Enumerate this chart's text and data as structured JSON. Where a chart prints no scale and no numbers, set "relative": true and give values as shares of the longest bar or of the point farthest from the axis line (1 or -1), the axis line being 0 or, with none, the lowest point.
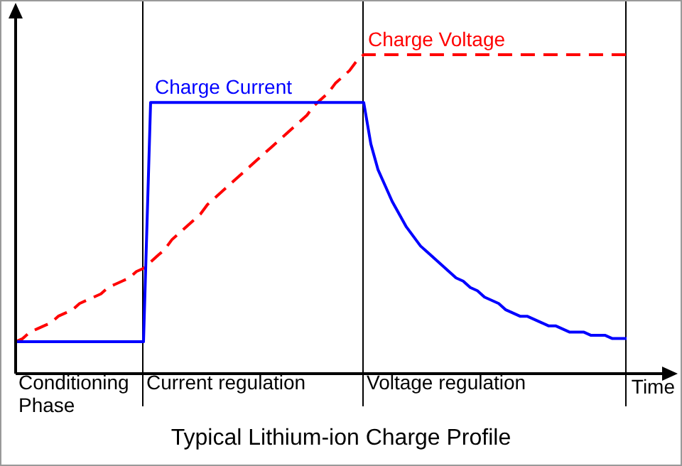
{
  "chart_data": {
    "type": "line",
    "title": "Typical Lithium-ion Charge Profile",
    "xlabel": "Time",
    "relative": true,
    "legend": false,
    "marker": "none",
    "annotations": [
      "Conditioning Phase",
      "Current regulation",
      "Voltage regulation"
    ],
    "categories": [
      null,
      null,
      null,
      null,
      null,
      null,
      null,
      null,
      null,
      null,
      null,
      null,
      null,
      null,
      null,
      null,
      null,
      null,
      null,
      null,
      null,
      null,
      null,
      null,
      null,
      null,
      null,
      null,
      null,
      null,
      null,
      null,
      null,
      null,
      null,
      null,
      null,
      null,
      null,
      null,
      null,
      null,
      null,
      null,
      null,
      null,
      null,
      null,
      null,
      null,
      null,
      null,
      null,
      null,
      null,
      null,
      null,
      null,
      null,
      null,
      null,
      null,
      null,
      null,
      null,
      null,
      null,
      null,
      null,
      null,
      null,
      null,
      null,
      null,
      null,
      null,
      null,
      null,
      null,
      null,
      null,
      null,
      null,
      null,
      null,
      null,
      null,
      null,
      null,
      null,
      null,
      null,
      null
    ],
    "series": [
      {
        "name": "Charge Current",
        "color": "#0000ff",
        "line_style": "solid",
        "values": [
          0.1,
          0.1,
          0.1,
          0.1,
          0.1,
          0.1,
          0.1,
          0.1,
          0.1,
          0.1,
          0.1,
          0.1,
          0.1,
          0.1,
          0.1,
          0.1,
          0.1,
          0.1,
          0.1,
          0.85,
          0.85,
          0.85,
          0.85,
          0.85,
          0.85,
          0.85,
          0.85,
          0.85,
          0.85,
          0.85,
          0.85,
          0.85,
          0.85,
          0.85,
          0.85,
          0.85,
          0.85,
          0.85,
          0.85,
          0.85,
          0.85,
          0.85,
          0.85,
          0.85,
          0.85,
          0.85,
          0.85,
          0.85,
          0.85,
          0.85,
          0.72,
          0.64,
          0.59,
          0.54,
          0.5,
          0.46,
          0.43,
          0.4,
          0.38,
          0.36,
          0.34,
          0.32,
          0.3,
          0.29,
          0.27,
          0.26,
          0.24,
          0.23,
          0.22,
          0.2,
          0.19,
          0.18,
          0.18,
          0.17,
          0.16,
          0.15,
          0.15,
          0.14,
          0.13,
          0.13,
          0.13,
          0.12,
          0.12,
          0.12,
          0.11,
          0.11,
          0.11,
          null,
          null,
          null,
          null,
          null,
          null
        ]
      },
      {
        "name": "Charge Voltage",
        "color": "#ff0000",
        "line_style": "dashed",
        "values": [
          0.1,
          0.11,
          0.13,
          0.14,
          0.15,
          0.16,
          0.18,
          0.19,
          0.2,
          0.22,
          0.23,
          0.24,
          0.25,
          0.27,
          0.28,
          0.29,
          0.3,
          0.32,
          0.33,
          0.35,
          0.37,
          0.39,
          0.42,
          0.44,
          0.46,
          0.48,
          0.5,
          0.53,
          0.55,
          0.57,
          0.59,
          0.61,
          0.63,
          0.65,
          0.67,
          0.69,
          0.71,
          0.73,
          0.75,
          0.77,
          0.79,
          0.81,
          0.84,
          0.86,
          0.88,
          0.91,
          0.93,
          0.95,
          0.98,
          1.0,
          1.0,
          1.0,
          1.0,
          1.0,
          1.0,
          1.0,
          1.0,
          1.0,
          1.0,
          1.0,
          1.0,
          1.0,
          1.0,
          1.0,
          1.0,
          1.0,
          1.0,
          1.0,
          1.0,
          1.0,
          1.0,
          1.0,
          1.0,
          1.0,
          1.0,
          1.0,
          1.0,
          1.0,
          1.0,
          1.0,
          1.0,
          1.0,
          1.0,
          1.0,
          1.0,
          1.0,
          1.0,
          null,
          null,
          null,
          null,
          null,
          null
        ]
      }
    ]
  }
}
